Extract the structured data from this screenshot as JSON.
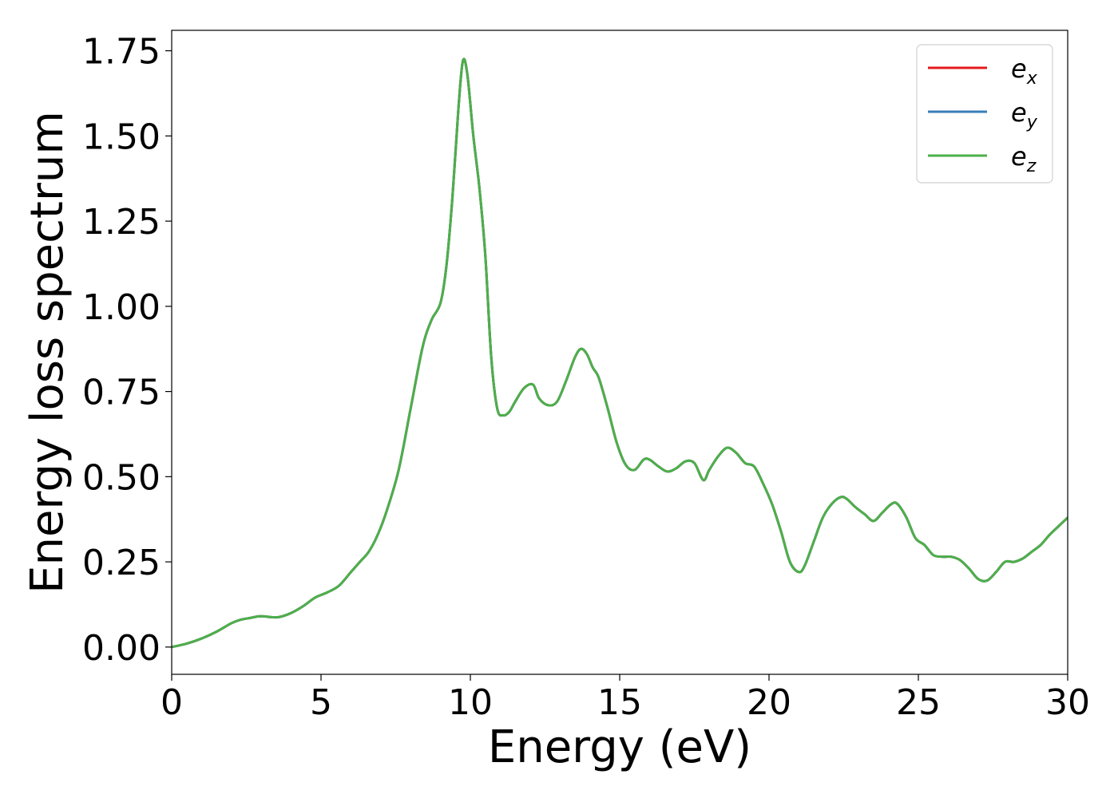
{
  "chart_data": {
    "type": "line",
    "title": "",
    "xlabel": "Energy (eV)",
    "ylabel": "Energy loss spectrum",
    "xlim": [
      0,
      30
    ],
    "ylim": [
      -0.08,
      1.81
    ],
    "xticks": [
      0,
      5,
      10,
      15,
      20,
      25,
      30
    ],
    "xtick_labels": [
      "0",
      "5",
      "10",
      "15",
      "20",
      "25",
      "30"
    ],
    "yticks": [
      0.0,
      0.25,
      0.5,
      0.75,
      1.0,
      1.25,
      1.5,
      1.75
    ],
    "ytick_labels": [
      "0.00",
      "0.25",
      "0.50",
      "0.75",
      "1.00",
      "1.25",
      "1.50",
      "1.75"
    ],
    "grid": false,
    "legend_position": "top-right",
    "series": [
      {
        "name": "e_x",
        "legend_base": "e",
        "legend_sub": "x",
        "color": "#e41a1c",
        "x": [
          0,
          0.5,
          1.0,
          1.5,
          2.0,
          2.3,
          2.6,
          2.9,
          3.1,
          3.3,
          3.6,
          4.0,
          4.4,
          4.8,
          5.2,
          5.6,
          6.0,
          6.3,
          6.6,
          6.9,
          7.2,
          7.6,
          8.0,
          8.4,
          8.7,
          9.0,
          9.2,
          9.4,
          9.6,
          9.75,
          9.9,
          10.1,
          10.3,
          10.5,
          10.7,
          10.9,
          11.1,
          11.3,
          11.5,
          11.8,
          12.1,
          12.3,
          12.6,
          12.9,
          13.2,
          13.5,
          13.7,
          13.9,
          14.1,
          14.3,
          14.6,
          14.9,
          15.2,
          15.5,
          15.8,
          16.0,
          16.3,
          16.6,
          16.9,
          17.2,
          17.5,
          17.8,
          18.0,
          18.3,
          18.6,
          18.9,
          19.2,
          19.5,
          19.8,
          20.1,
          20.4,
          20.7,
          21.0,
          21.2,
          21.5,
          21.8,
          22.1,
          22.4,
          22.6,
          22.9,
          23.2,
          23.5,
          23.8,
          24.1,
          24.3,
          24.6,
          24.9,
          25.2,
          25.5,
          25.8,
          26.1,
          26.4,
          26.7,
          27.0,
          27.3,
          27.6,
          27.9,
          28.2,
          28.5,
          28.8,
          29.1,
          29.4,
          29.7,
          30.0
        ],
        "y": [
          0.0,
          0.01,
          0.025,
          0.045,
          0.07,
          0.08,
          0.085,
          0.09,
          0.09,
          0.088,
          0.088,
          0.1,
          0.12,
          0.145,
          0.16,
          0.18,
          0.22,
          0.25,
          0.28,
          0.33,
          0.4,
          0.52,
          0.7,
          0.88,
          0.96,
          1.01,
          1.12,
          1.32,
          1.58,
          1.72,
          1.68,
          1.5,
          1.35,
          1.15,
          0.85,
          0.7,
          0.68,
          0.69,
          0.72,
          0.76,
          0.77,
          0.73,
          0.71,
          0.72,
          0.78,
          0.85,
          0.875,
          0.86,
          0.82,
          0.79,
          0.7,
          0.6,
          0.535,
          0.52,
          0.55,
          0.55,
          0.53,
          0.515,
          0.525,
          0.545,
          0.54,
          0.49,
          0.52,
          0.56,
          0.585,
          0.57,
          0.54,
          0.53,
          0.48,
          0.42,
          0.34,
          0.25,
          0.22,
          0.24,
          0.31,
          0.38,
          0.42,
          0.44,
          0.435,
          0.41,
          0.39,
          0.37,
          0.395,
          0.42,
          0.42,
          0.38,
          0.32,
          0.3,
          0.27,
          0.265,
          0.265,
          0.255,
          0.23,
          0.2,
          0.195,
          0.22,
          0.25,
          0.25,
          0.26,
          0.28,
          0.3,
          0.33,
          0.355,
          0.38
        ]
      },
      {
        "name": "e_y",
        "legend_base": "e",
        "legend_sub": "y",
        "color": "#377eb8",
        "x": [
          0,
          0.5,
          1.0,
          1.5,
          2.0,
          2.3,
          2.6,
          2.9,
          3.1,
          3.3,
          3.6,
          4.0,
          4.4,
          4.8,
          5.2,
          5.6,
          6.0,
          6.3,
          6.6,
          6.9,
          7.2,
          7.6,
          8.0,
          8.4,
          8.7,
          9.0,
          9.2,
          9.4,
          9.6,
          9.75,
          9.9,
          10.1,
          10.3,
          10.5,
          10.7,
          10.9,
          11.1,
          11.3,
          11.5,
          11.8,
          12.1,
          12.3,
          12.6,
          12.9,
          13.2,
          13.5,
          13.7,
          13.9,
          14.1,
          14.3,
          14.6,
          14.9,
          15.2,
          15.5,
          15.8,
          16.0,
          16.3,
          16.6,
          16.9,
          17.2,
          17.5,
          17.8,
          18.0,
          18.3,
          18.6,
          18.9,
          19.2,
          19.5,
          19.8,
          20.1,
          20.4,
          20.7,
          21.0,
          21.2,
          21.5,
          21.8,
          22.1,
          22.4,
          22.6,
          22.9,
          23.2,
          23.5,
          23.8,
          24.1,
          24.3,
          24.6,
          24.9,
          25.2,
          25.5,
          25.8,
          26.1,
          26.4,
          26.7,
          27.0,
          27.3,
          27.6,
          27.9,
          28.2,
          28.5,
          28.8,
          29.1,
          29.4,
          29.7,
          30.0
        ],
        "y": [
          0.0,
          0.01,
          0.025,
          0.045,
          0.07,
          0.08,
          0.085,
          0.09,
          0.09,
          0.088,
          0.088,
          0.1,
          0.12,
          0.145,
          0.16,
          0.18,
          0.22,
          0.25,
          0.28,
          0.33,
          0.4,
          0.52,
          0.7,
          0.88,
          0.96,
          1.01,
          1.12,
          1.32,
          1.58,
          1.72,
          1.68,
          1.5,
          1.35,
          1.15,
          0.85,
          0.7,
          0.68,
          0.69,
          0.72,
          0.76,
          0.77,
          0.73,
          0.71,
          0.72,
          0.78,
          0.85,
          0.875,
          0.86,
          0.82,
          0.79,
          0.7,
          0.6,
          0.535,
          0.52,
          0.55,
          0.55,
          0.53,
          0.515,
          0.525,
          0.545,
          0.54,
          0.49,
          0.52,
          0.56,
          0.585,
          0.57,
          0.54,
          0.53,
          0.48,
          0.42,
          0.34,
          0.25,
          0.22,
          0.24,
          0.31,
          0.38,
          0.42,
          0.44,
          0.435,
          0.41,
          0.39,
          0.37,
          0.395,
          0.42,
          0.42,
          0.38,
          0.32,
          0.3,
          0.27,
          0.265,
          0.265,
          0.255,
          0.23,
          0.2,
          0.195,
          0.22,
          0.25,
          0.25,
          0.26,
          0.28,
          0.3,
          0.33,
          0.355,
          0.38
        ]
      },
      {
        "name": "e_z",
        "legend_base": "e",
        "legend_sub": "z",
        "color": "#4daf4a",
        "x": [
          0,
          0.5,
          1.0,
          1.5,
          2.0,
          2.3,
          2.6,
          2.9,
          3.1,
          3.3,
          3.6,
          4.0,
          4.4,
          4.8,
          5.2,
          5.6,
          6.0,
          6.3,
          6.6,
          6.9,
          7.2,
          7.6,
          8.0,
          8.4,
          8.7,
          9.0,
          9.2,
          9.4,
          9.6,
          9.75,
          9.9,
          10.1,
          10.3,
          10.5,
          10.7,
          10.9,
          11.1,
          11.3,
          11.5,
          11.8,
          12.1,
          12.3,
          12.6,
          12.9,
          13.2,
          13.5,
          13.7,
          13.9,
          14.1,
          14.3,
          14.6,
          14.9,
          15.2,
          15.5,
          15.8,
          16.0,
          16.3,
          16.6,
          16.9,
          17.2,
          17.5,
          17.8,
          18.0,
          18.3,
          18.6,
          18.9,
          19.2,
          19.5,
          19.8,
          20.1,
          20.4,
          20.7,
          21.0,
          21.2,
          21.5,
          21.8,
          22.1,
          22.4,
          22.6,
          22.9,
          23.2,
          23.5,
          23.8,
          24.1,
          24.3,
          24.6,
          24.9,
          25.2,
          25.5,
          25.8,
          26.1,
          26.4,
          26.7,
          27.0,
          27.3,
          27.6,
          27.9,
          28.2,
          28.5,
          28.8,
          29.1,
          29.4,
          29.7,
          30.0
        ],
        "y": [
          0.0,
          0.01,
          0.025,
          0.045,
          0.07,
          0.08,
          0.085,
          0.09,
          0.09,
          0.088,
          0.088,
          0.1,
          0.12,
          0.145,
          0.16,
          0.18,
          0.22,
          0.25,
          0.28,
          0.33,
          0.4,
          0.52,
          0.7,
          0.88,
          0.96,
          1.01,
          1.12,
          1.32,
          1.58,
          1.72,
          1.68,
          1.5,
          1.35,
          1.15,
          0.85,
          0.7,
          0.68,
          0.69,
          0.72,
          0.76,
          0.77,
          0.73,
          0.71,
          0.72,
          0.78,
          0.85,
          0.875,
          0.86,
          0.82,
          0.79,
          0.7,
          0.6,
          0.535,
          0.52,
          0.55,
          0.55,
          0.53,
          0.515,
          0.525,
          0.545,
          0.54,
          0.49,
          0.52,
          0.56,
          0.585,
          0.57,
          0.54,
          0.53,
          0.48,
          0.42,
          0.34,
          0.25,
          0.22,
          0.24,
          0.31,
          0.38,
          0.42,
          0.44,
          0.435,
          0.41,
          0.39,
          0.37,
          0.395,
          0.42,
          0.42,
          0.38,
          0.32,
          0.3,
          0.27,
          0.265,
          0.265,
          0.255,
          0.23,
          0.2,
          0.195,
          0.22,
          0.25,
          0.25,
          0.26,
          0.28,
          0.3,
          0.33,
          0.355,
          0.38
        ]
      }
    ]
  }
}
